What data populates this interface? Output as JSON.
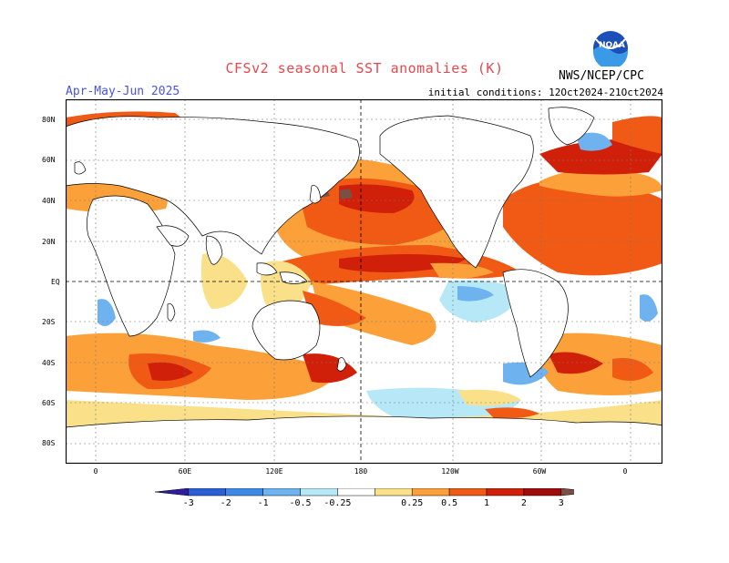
{
  "header": {
    "title": "CFSv2 seasonal SST anomalies (K)",
    "season": "Apr-May-Jun 2025",
    "initial_conditions": "initial conditions: 12Oct2024-21Oct2024",
    "org": "NWS/NCEP/CPC",
    "logo_text": "NOAA"
  },
  "map": {
    "projection": "equirectangular",
    "lat_labels": [
      "80N",
      "60N",
      "40N",
      "20N",
      "EQ",
      "20S",
      "40S",
      "60S",
      "80S"
    ],
    "lon_labels": [
      "0",
      "60E",
      "120E",
      "180",
      "120W",
      "60W",
      "0"
    ],
    "colors": {
      "land": "#ffffff",
      "coast": "#000000",
      "grid": "#888888"
    }
  },
  "colorbar": {
    "labels": [
      "-3",
      "-2",
      "-1",
      "-0.5",
      "-0.25",
      "0.25",
      "0.5",
      "1",
      "2",
      "3"
    ],
    "colors": [
      "#2d1ea0",
      "#2a5fd8",
      "#3f8ae8",
      "#6eb3f0",
      "#b6e8f7",
      "#ffffff",
      "#fbe08a",
      "#fca03a",
      "#f05a14",
      "#d0200a",
      "#a00a0a",
      "#7a5045"
    ]
  }
}
